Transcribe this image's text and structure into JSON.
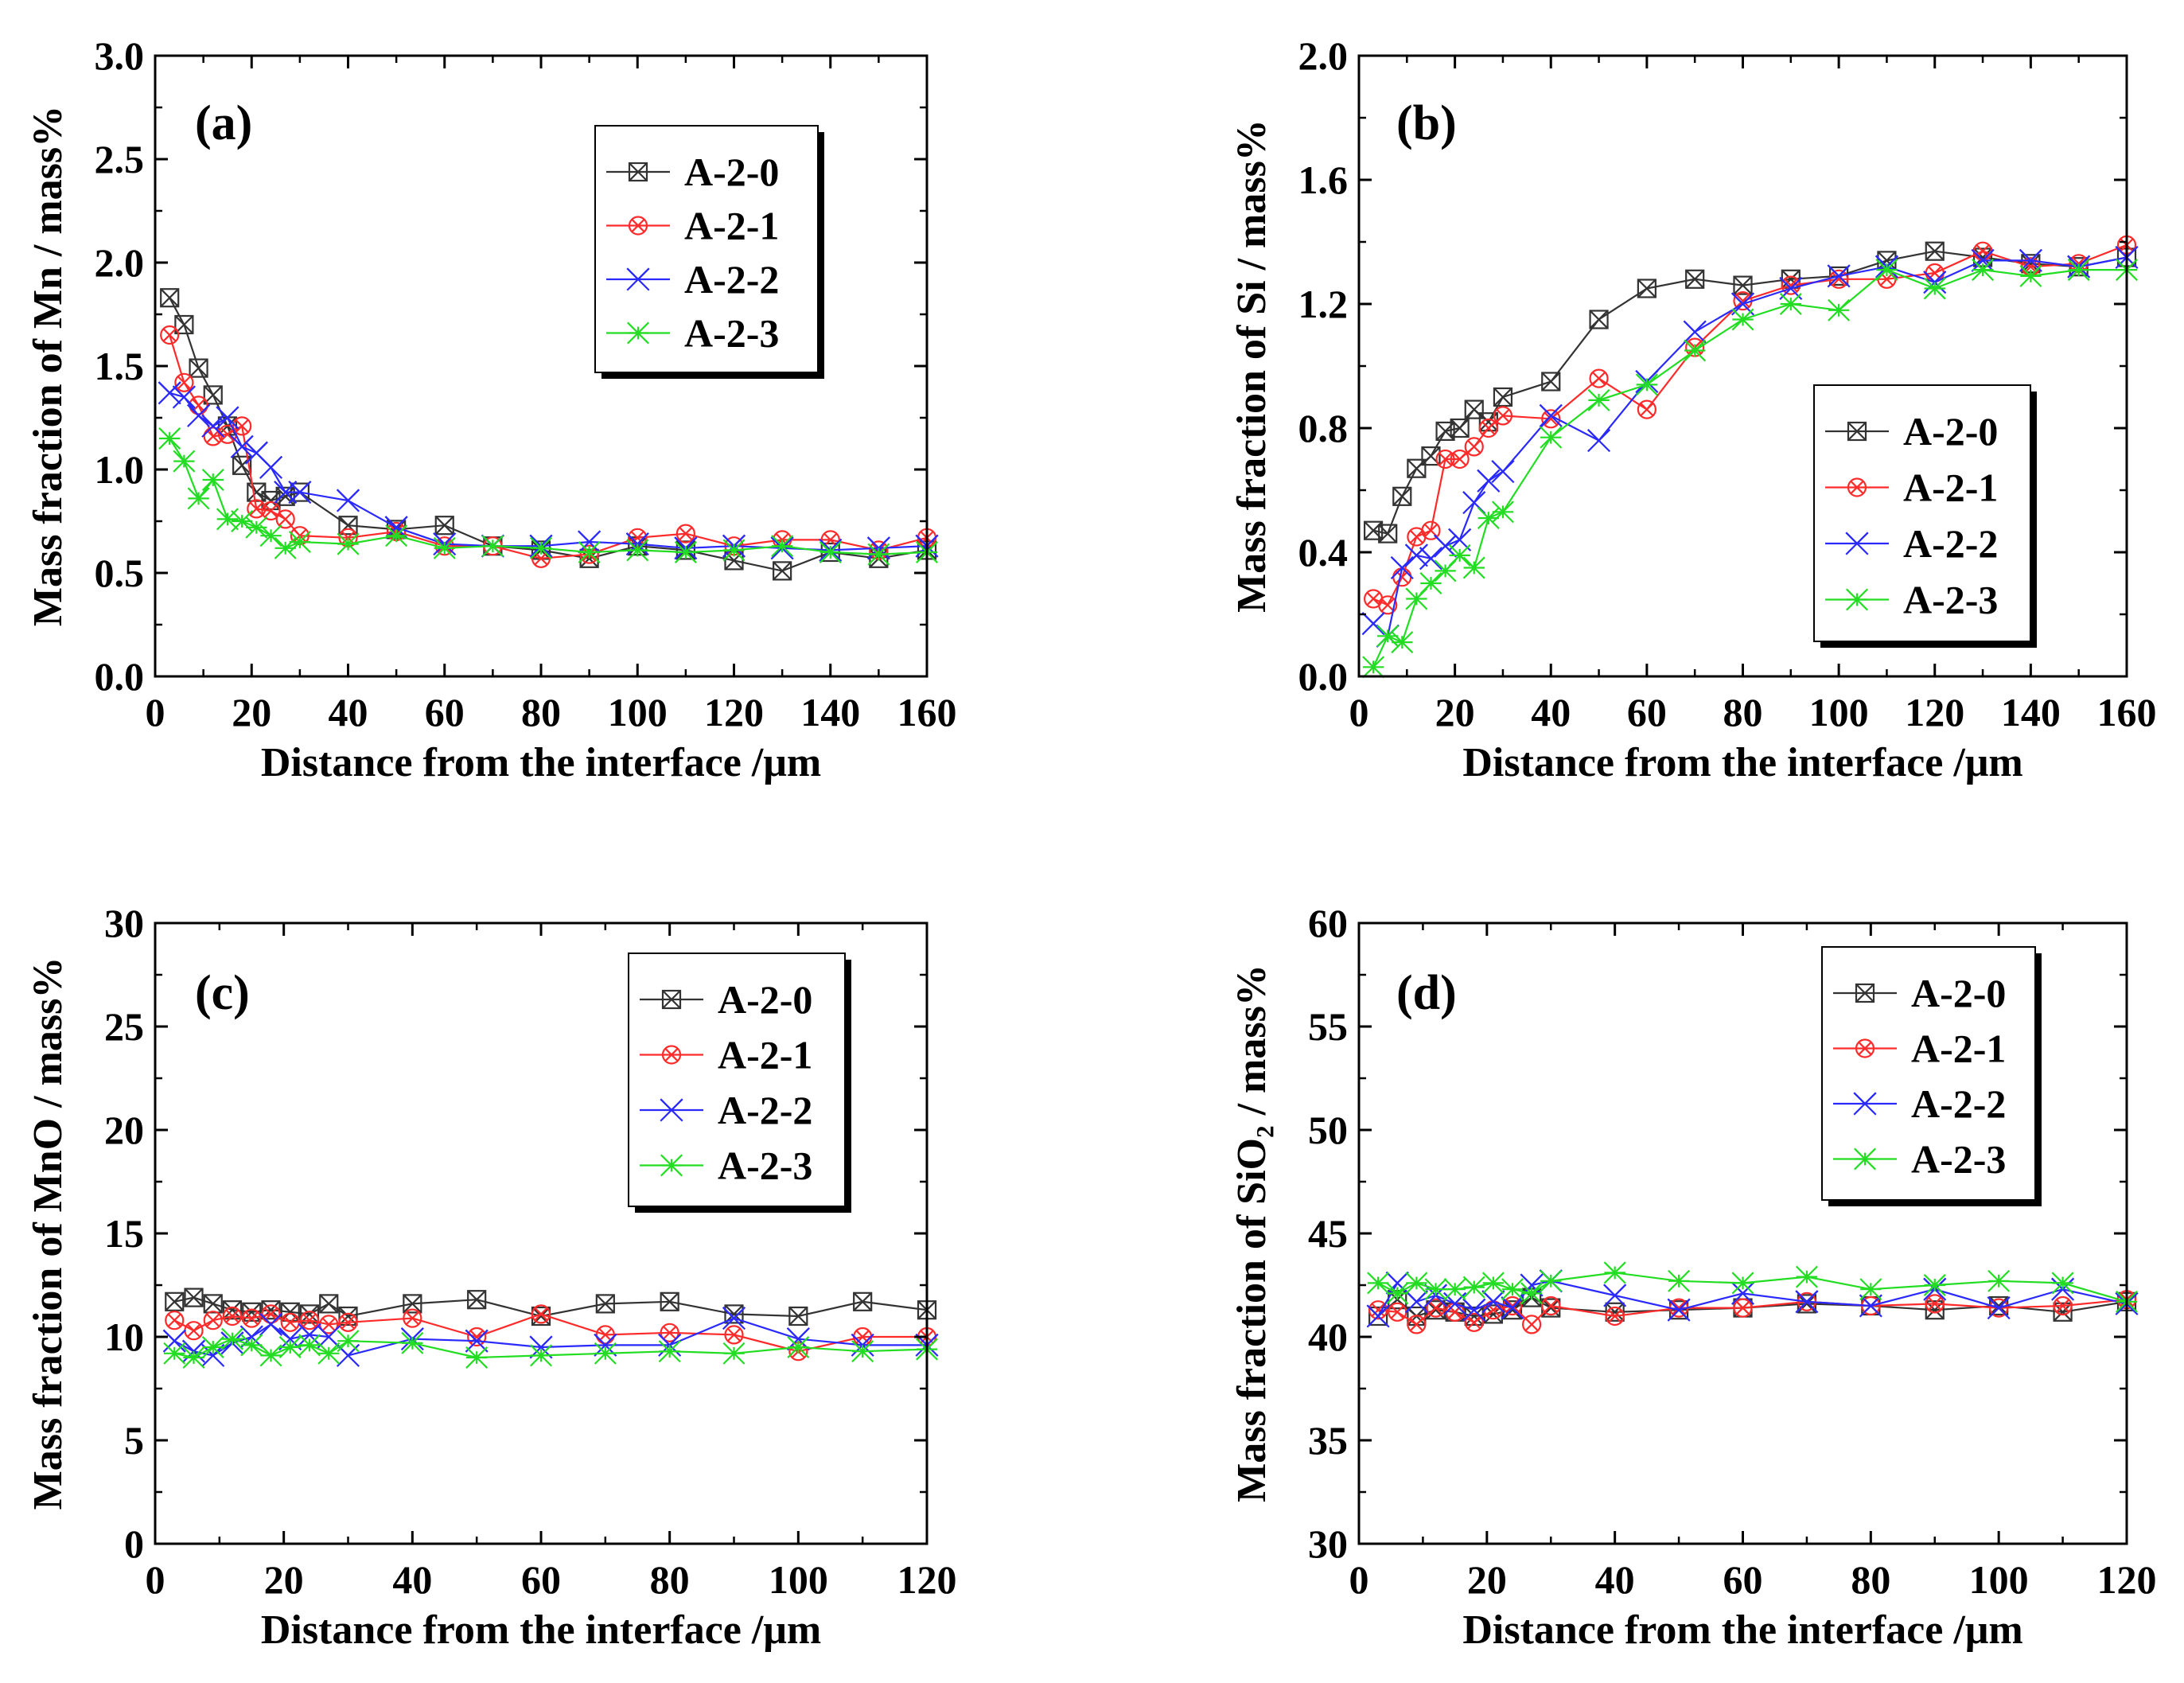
{
  "series_colors": {
    "A-2-0": "#333333",
    "A-2-1": "#ff2a2a",
    "A-2-2": "#2a2aff",
    "A-2-3": "#22dd22"
  },
  "chart_data": [
    {
      "type": "line",
      "panel_label": "(a)",
      "xlabel": "Distance from the interface /μm",
      "ylabel": "Mass fraction of Mn / mass%",
      "xlim": [
        0,
        160
      ],
      "ylim": [
        0,
        3.0
      ],
      "xticks": [
        "0",
        "20",
        "40",
        "60",
        "80",
        "100",
        "120",
        "140",
        "160"
      ],
      "yticks": [
        "0.0",
        "0.5",
        "1.0",
        "1.5",
        "2.0",
        "2.5",
        "3.0"
      ],
      "legend": [
        "A-2-0",
        "A-2-1",
        "A-2-2",
        "A-2-3"
      ],
      "series": [
        {
          "name": "A-2-0",
          "marker": "square-x",
          "x": [
            3,
            6,
            9,
            12,
            15,
            18,
            21,
            24,
            27,
            30,
            40,
            50,
            60,
            70,
            80,
            90,
            100,
            110,
            120,
            130,
            140,
            150,
            160
          ],
          "y": [
            1.83,
            1.7,
            1.49,
            1.36,
            1.21,
            1.02,
            0.89,
            0.85,
            0.87,
            0.89,
            0.73,
            0.71,
            0.73,
            0.63,
            0.61,
            0.57,
            0.63,
            0.61,
            0.56,
            0.51,
            0.6,
            0.57,
            0.61
          ]
        },
        {
          "name": "A-2-1",
          "marker": "circle-x",
          "x": [
            3,
            6,
            9,
            12,
            15,
            18,
            21,
            24,
            27,
            30,
            40,
            50,
            60,
            70,
            80,
            90,
            100,
            110,
            120,
            130,
            140,
            150,
            160
          ],
          "y": [
            1.65,
            1.42,
            1.31,
            1.16,
            1.17,
            1.21,
            0.81,
            0.8,
            0.76,
            0.68,
            0.67,
            0.7,
            0.63,
            0.63,
            0.57,
            0.59,
            0.67,
            0.69,
            0.63,
            0.66,
            0.66,
            0.61,
            0.67
          ]
        },
        {
          "name": "A-2-2",
          "marker": "x-triangle",
          "x": [
            3,
            6,
            9,
            12,
            15,
            18,
            21,
            24,
            27,
            30,
            40,
            50,
            60,
            70,
            80,
            90,
            100,
            110,
            120,
            130,
            140,
            150,
            160
          ],
          "y": [
            1.37,
            1.35,
            1.26,
            1.21,
            1.25,
            1.11,
            1.08,
            1.01,
            0.89,
            0.89,
            0.85,
            0.72,
            0.64,
            0.63,
            0.63,
            0.65,
            0.64,
            0.62,
            0.63,
            0.62,
            0.61,
            0.62,
            0.63
          ]
        },
        {
          "name": "A-2-3",
          "marker": "asterisk",
          "x": [
            3,
            6,
            9,
            12,
            15,
            18,
            21,
            24,
            27,
            30,
            40,
            50,
            60,
            70,
            80,
            90,
            100,
            110,
            120,
            130,
            140,
            150,
            160
          ],
          "y": [
            1.15,
            1.04,
            0.86,
            0.95,
            0.76,
            0.75,
            0.72,
            0.68,
            0.62,
            0.65,
            0.64,
            0.68,
            0.62,
            0.63,
            0.62,
            0.6,
            0.61,
            0.6,
            0.61,
            0.63,
            0.6,
            0.59,
            0.6
          ]
        }
      ]
    },
    {
      "type": "line",
      "panel_label": "(b)",
      "xlabel": "Distance from the interface /μm",
      "ylabel": "Mass fraction of Si / mass%",
      "xlim": [
        0,
        160
      ],
      "ylim": [
        0,
        2.0
      ],
      "xticks": [
        "0",
        "20",
        "40",
        "60",
        "80",
        "100",
        "120",
        "140",
        "160"
      ],
      "yticks": [
        "0.0",
        "0.4",
        "0.8",
        "1.2",
        "1.6",
        "2.0"
      ],
      "legend": [
        "A-2-0",
        "A-2-1",
        "A-2-2",
        "A-2-3"
      ],
      "series": [
        {
          "name": "A-2-0",
          "marker": "square-x",
          "x": [
            3,
            6,
            9,
            12,
            15,
            18,
            21,
            24,
            27,
            30,
            40,
            50,
            60,
            70,
            80,
            90,
            100,
            110,
            120,
            130,
            140,
            150,
            160
          ],
          "y": [
            0.47,
            0.46,
            0.58,
            0.67,
            0.71,
            0.79,
            0.8,
            0.86,
            0.82,
            0.9,
            0.95,
            1.15,
            1.25,
            1.28,
            1.26,
            1.28,
            1.29,
            1.34,
            1.37,
            1.35,
            1.33,
            1.32,
            1.35
          ]
        },
        {
          "name": "A-2-1",
          "marker": "circle-x",
          "x": [
            3,
            6,
            9,
            12,
            15,
            18,
            21,
            24,
            27,
            30,
            40,
            50,
            60,
            70,
            80,
            90,
            100,
            110,
            120,
            130,
            140,
            150,
            160
          ],
          "y": [
            0.25,
            0.23,
            0.32,
            0.45,
            0.47,
            0.7,
            0.7,
            0.74,
            0.8,
            0.84,
            0.83,
            0.96,
            0.86,
            1.06,
            1.21,
            1.26,
            1.28,
            1.28,
            1.3,
            1.37,
            1.32,
            1.33,
            1.39
          ]
        },
        {
          "name": "A-2-2",
          "marker": "x-triangle",
          "x": [
            3,
            6,
            9,
            12,
            15,
            18,
            21,
            24,
            27,
            30,
            40,
            50,
            60,
            70,
            80,
            90,
            100,
            110,
            120,
            130,
            140,
            150,
            160
          ],
          "y": [
            0.17,
            0.13,
            0.35,
            0.39,
            0.38,
            0.42,
            0.44,
            0.56,
            0.63,
            0.66,
            0.84,
            0.76,
            0.95,
            1.11,
            1.2,
            1.25,
            1.29,
            1.32,
            1.27,
            1.34,
            1.34,
            1.32,
            1.35
          ]
        },
        {
          "name": "A-2-3",
          "marker": "asterisk",
          "x": [
            3,
            6,
            9,
            12,
            15,
            18,
            21,
            24,
            27,
            30,
            40,
            50,
            60,
            70,
            80,
            90,
            100,
            110,
            120,
            130,
            140,
            150,
            160
          ],
          "y": [
            0.03,
            0.13,
            0.11,
            0.25,
            0.3,
            0.34,
            0.39,
            0.35,
            0.51,
            0.53,
            0.77,
            0.89,
            0.94,
            1.05,
            1.15,
            1.2,
            1.18,
            1.31,
            1.25,
            1.31,
            1.29,
            1.31,
            1.31
          ]
        }
      ]
    },
    {
      "type": "line",
      "panel_label": "(c)",
      "xlabel": "Distance from the interface /μm",
      "ylabel": "Mass fraction of MnO / mass%",
      "xlim": [
        0,
        120
      ],
      "ylim": [
        0,
        30
      ],
      "xticks": [
        "0",
        "20",
        "40",
        "60",
        "80",
        "100",
        "120"
      ],
      "yticks": [
        "0",
        "5",
        "10",
        "15",
        "20",
        "25",
        "30"
      ],
      "legend": [
        "A-2-0",
        "A-2-1",
        "A-2-2",
        "A-2-3"
      ],
      "series": [
        {
          "name": "A-2-0",
          "marker": "square-x",
          "x": [
            3,
            6,
            9,
            12,
            15,
            18,
            21,
            24,
            27,
            30,
            40,
            50,
            60,
            70,
            80,
            90,
            100,
            110,
            120
          ],
          "y": [
            11.7,
            11.9,
            11.6,
            11.3,
            11.2,
            11.3,
            11.2,
            11.1,
            11.6,
            11.0,
            11.6,
            11.8,
            11.0,
            11.6,
            11.7,
            11.1,
            11.0,
            11.7,
            11.3
          ]
        },
        {
          "name": "A-2-1",
          "marker": "circle-x",
          "x": [
            3,
            6,
            9,
            12,
            15,
            18,
            21,
            24,
            27,
            30,
            40,
            50,
            60,
            70,
            80,
            90,
            100,
            110,
            120
          ],
          "y": [
            10.8,
            10.3,
            10.8,
            11.0,
            10.9,
            11.1,
            10.7,
            10.8,
            10.6,
            10.7,
            10.9,
            10.0,
            11.1,
            10.1,
            10.2,
            10.1,
            9.3,
            10.0,
            10.0
          ]
        },
        {
          "name": "A-2-2",
          "marker": "x-triangle",
          "x": [
            3,
            6,
            9,
            12,
            15,
            18,
            21,
            24,
            27,
            30,
            40,
            50,
            60,
            70,
            80,
            90,
            100,
            110,
            120
          ],
          "y": [
            9.8,
            9.3,
            9.1,
            9.7,
            10.0,
            10.6,
            9.9,
            10.1,
            10.0,
            9.1,
            9.9,
            9.8,
            9.5,
            9.6,
            9.6,
            10.9,
            9.9,
            9.6,
            9.6
          ]
        },
        {
          "name": "A-2-3",
          "marker": "asterisk",
          "x": [
            3,
            6,
            9,
            12,
            15,
            18,
            21,
            24,
            27,
            30,
            40,
            50,
            60,
            70,
            80,
            90,
            100,
            110,
            120
          ],
          "y": [
            9.2,
            9.0,
            9.5,
            9.9,
            9.6,
            9.1,
            9.5,
            9.6,
            9.2,
            9.8,
            9.7,
            9.0,
            9.1,
            9.2,
            9.3,
            9.2,
            9.5,
            9.3,
            9.4
          ]
        }
      ]
    },
    {
      "type": "line",
      "panel_label": "(d)",
      "xlabel": "Distance from the interface /μm",
      "ylabel": "Mass fraction of SiO₂ / mass%",
      "xlim": [
        0,
        120
      ],
      "ylim": [
        30,
        60
      ],
      "xticks": [
        "0",
        "20",
        "40",
        "60",
        "80",
        "100",
        "120"
      ],
      "yticks": [
        "30",
        "35",
        "40",
        "45",
        "50",
        "55",
        "60"
      ],
      "legend": [
        "A-2-0",
        "A-2-1",
        "A-2-2",
        "A-2-3"
      ],
      "series": [
        {
          "name": "A-2-0",
          "marker": "square-x",
          "x": [
            3,
            6,
            9,
            12,
            15,
            18,
            21,
            24,
            27,
            30,
            40,
            50,
            60,
            70,
            80,
            90,
            100,
            110,
            120
          ],
          "y": [
            41.0,
            41.8,
            41.0,
            41.3,
            41.2,
            41.0,
            41.1,
            41.3,
            41.9,
            41.4,
            41.2,
            41.3,
            41.4,
            41.6,
            41.5,
            41.3,
            41.5,
            41.2,
            41.7
          ]
        },
        {
          "name": "A-2-1",
          "marker": "circle-x",
          "x": [
            3,
            6,
            9,
            12,
            15,
            18,
            21,
            24,
            27,
            30,
            40,
            50,
            60,
            70,
            80,
            90,
            100,
            110,
            120
          ],
          "y": [
            41.3,
            41.2,
            40.6,
            41.4,
            41.2,
            40.7,
            41.3,
            41.5,
            40.6,
            41.5,
            41.0,
            41.4,
            41.4,
            41.7,
            41.5,
            41.6,
            41.4,
            41.5,
            41.8
          ]
        },
        {
          "name": "A-2-2",
          "marker": "x-triangle",
          "x": [
            3,
            6,
            9,
            12,
            15,
            18,
            21,
            24,
            27,
            30,
            40,
            50,
            60,
            70,
            80,
            90,
            100,
            110,
            120
          ],
          "y": [
            41.0,
            42.6,
            41.7,
            42.0,
            41.6,
            41.3,
            41.7,
            41.4,
            42.5,
            42.7,
            42.0,
            41.3,
            42.1,
            41.7,
            41.5,
            42.3,
            41.4,
            42.3,
            41.6
          ]
        },
        {
          "name": "A-2-3",
          "marker": "asterisk",
          "x": [
            3,
            6,
            9,
            12,
            15,
            18,
            21,
            24,
            27,
            30,
            40,
            50,
            60,
            70,
            80,
            90,
            100,
            110,
            120
          ],
          "y": [
            42.6,
            42.1,
            42.6,
            42.3,
            42.3,
            42.4,
            42.6,
            42.3,
            42.1,
            42.7,
            43.1,
            42.7,
            42.6,
            42.9,
            42.3,
            42.5,
            42.7,
            42.6,
            41.7
          ]
        }
      ]
    }
  ]
}
